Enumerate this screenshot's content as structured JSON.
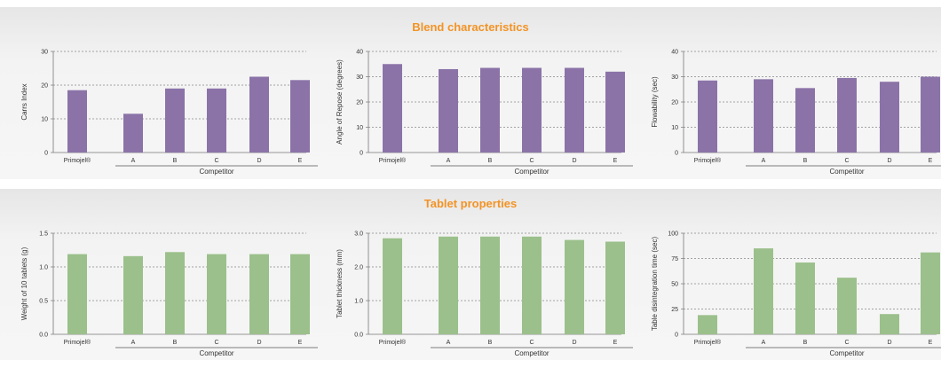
{
  "sections": {
    "blend_title": "Blend characteristics",
    "tablet_title": "Tablet properties"
  },
  "colors": {
    "blend_bar": "#8b73a8",
    "tablet_bar": "#9bc08b",
    "title": "#f39325"
  },
  "chart_data": [
    {
      "type": "bar",
      "section": "Blend characteristics",
      "categories": [
        "Primojel®",
        "A",
        "B",
        "C",
        "D",
        "E"
      ],
      "group_label": "Competitor",
      "ylabel": "Carrs Index",
      "yticks": [
        "0",
        "10",
        "20",
        "30"
      ],
      "ylim": [
        0,
        30
      ],
      "values": [
        18.5,
        11.5,
        19,
        19,
        22.5,
        21.5
      ],
      "grid": "dashed"
    },
    {
      "type": "bar",
      "section": "Blend characteristics",
      "categories": [
        "Primojel®",
        "A",
        "B",
        "C",
        "D",
        "E"
      ],
      "group_label": "Competitor",
      "ylabel": "Angle of Repose (degrees)",
      "yticks": [
        "0",
        "10",
        "20",
        "30",
        "40"
      ],
      "ylim": [
        0,
        40
      ],
      "values": [
        35,
        33,
        33.5,
        33.5,
        33.5,
        32
      ],
      "grid": "dashed"
    },
    {
      "type": "bar",
      "section": "Blend characteristics",
      "categories": [
        "Primojel®",
        "A",
        "B",
        "C",
        "D",
        "E"
      ],
      "group_label": "Competitor",
      "ylabel": "Flowability (sec)",
      "yticks": [
        "0",
        "10",
        "20",
        "30",
        "40"
      ],
      "ylim": [
        0,
        40
      ],
      "values": [
        28.5,
        29,
        25.5,
        29.5,
        28,
        30
      ],
      "grid": "dashed"
    },
    {
      "type": "bar",
      "section": "Tablet properties",
      "categories": [
        "Primojel®",
        "A",
        "B",
        "C",
        "D",
        "E"
      ],
      "group_label": "Competitor",
      "ylabel": "Weight of 10 tablets (g)",
      "yticks": [
        "0.0",
        "0.5",
        "1.0",
        "1.5"
      ],
      "ylim": [
        0,
        1.5
      ],
      "values": [
        1.19,
        1.16,
        1.22,
        1.19,
        1.19,
        1.19
      ],
      "grid": "dashed"
    },
    {
      "type": "bar",
      "section": "Tablet properties",
      "categories": [
        "Primojel®",
        "A",
        "B",
        "C",
        "D",
        "E"
      ],
      "group_label": "Competitor",
      "ylabel": "Tablet thickness (mm)",
      "yticks": [
        "0.0",
        "1.0",
        "2.0",
        "3.0"
      ],
      "ylim": [
        0,
        3
      ],
      "values": [
        2.85,
        2.9,
        2.9,
        2.9,
        2.8,
        2.75
      ],
      "grid": "dashed"
    },
    {
      "type": "bar",
      "section": "Tablet properties",
      "categories": [
        "Primojel®",
        "A",
        "B",
        "C",
        "D",
        "E"
      ],
      "group_label": "Competitor",
      "ylabel": "Table disintegration time (sec)",
      "yticks": [
        "0",
        "25",
        "50",
        "75",
        "100"
      ],
      "ylim": [
        0,
        100
      ],
      "values": [
        19,
        85,
        71,
        56,
        20,
        81
      ],
      "grid": "dashed"
    }
  ]
}
